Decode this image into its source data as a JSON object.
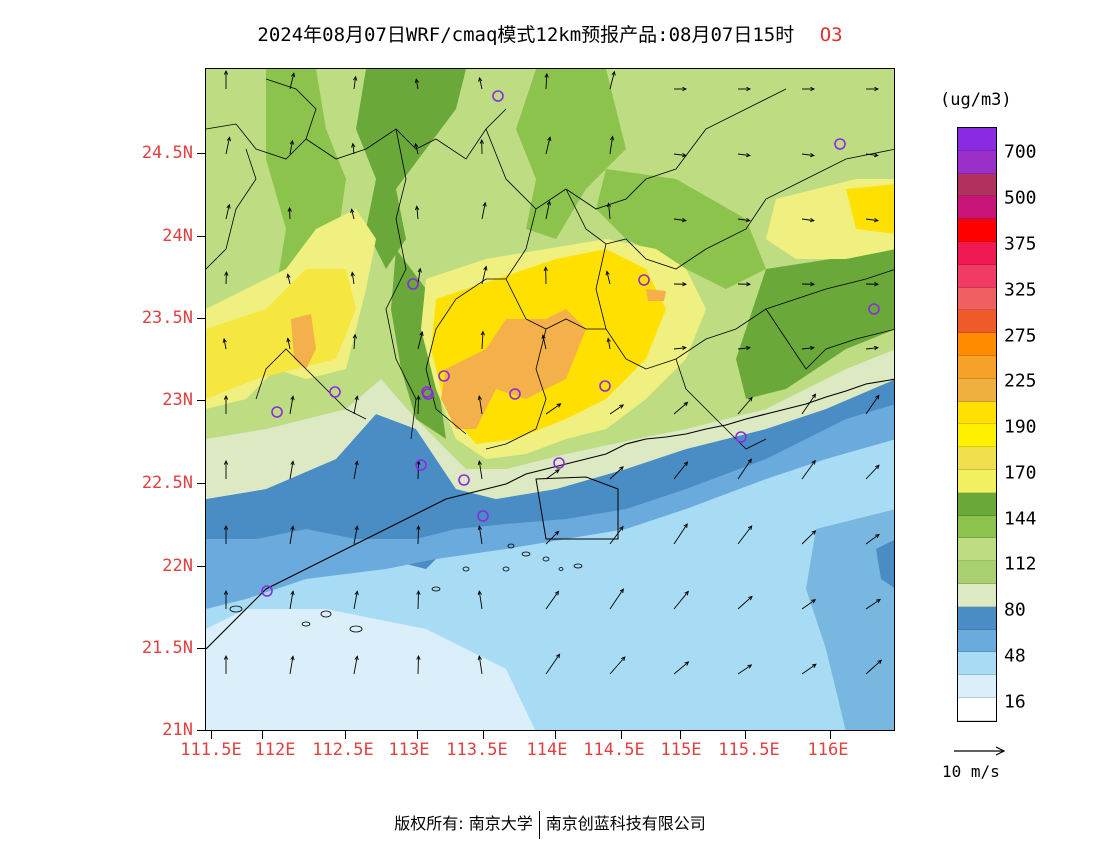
{
  "title": {
    "text": "2024年08月07日WRF/cmaq模式12km预报产品:08月07日15时",
    "species": "O3"
  },
  "map": {
    "lat_labels": [
      "24.5N",
      "24N",
      "23.5N",
      "23N",
      "22.5N",
      "22N",
      "21.5N",
      "21N"
    ],
    "lon_labels": [
      "111.5E",
      "112E",
      "112.5E",
      "113E",
      "113.5E",
      "114E",
      "114.5E",
      "115E",
      "115.5E",
      "116E"
    ],
    "colors": {
      "sea_light": "#daeffa",
      "sea": "#a8dcf4",
      "sea_mid": "#78b8e0",
      "coast_blue": "#4a8cc4",
      "pale": "#dde9c3",
      "green_light": "#bedd82",
      "green_mid": "#8cc34c",
      "green_dark": "#6aa83a",
      "yellow_pale": "#f0f080",
      "yellow": "#f6e640",
      "orange_light": "#f4b04a"
    },
    "station_marker_color": "#8a2be2"
  },
  "legend": {
    "unit": "(ug/m3)",
    "labels": [
      "700",
      "500",
      "375",
      "325",
      "275",
      "225",
      "190",
      "170",
      "144",
      "112",
      "80",
      "48",
      "16"
    ],
    "colors": [
      "#8a2be2",
      "#9b30c8",
      "#b03060",
      "#c81478",
      "#ff0000",
      "#f01850",
      "#f03c64",
      "#f06060",
      "#f05a28",
      "#ff8c00",
      "#f6a22a",
      "#f0b040",
      "#ffe000",
      "#fff000",
      "#f0e050",
      "#f0f060",
      "#6aa83a",
      "#8cc34c",
      "#bedd82",
      "#a8d070",
      "#dde9c3",
      "#4a8cc4",
      "#6aaadc",
      "#a8dcf4",
      "#daeffa",
      "#ffffff"
    ]
  },
  "wind_reference": "10 m/s",
  "footer": {
    "copyright": "版权所有: 南京大学",
    "company": "南京创蓝科技有限公司"
  }
}
